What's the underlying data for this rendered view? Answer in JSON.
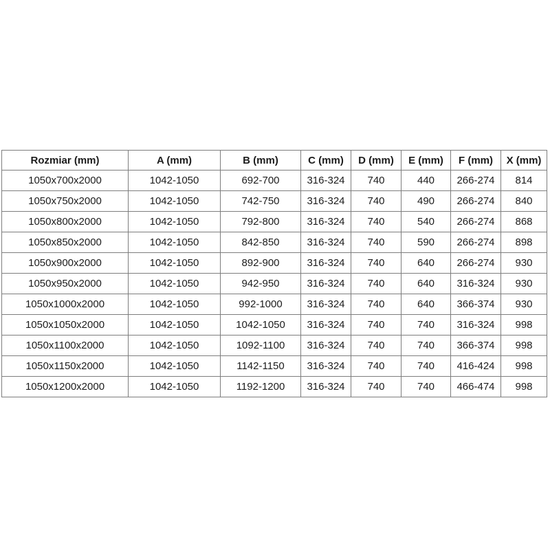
{
  "table": {
    "columns": [
      "Rozmiar (mm)",
      "A (mm)",
      "B (mm)",
      "C (mm)",
      "D (mm)",
      "E (mm)",
      "F (mm)",
      "X (mm)"
    ],
    "rows": [
      [
        "1050x700x2000",
        "1042-1050",
        "692-700",
        "316-324",
        "740",
        "440",
        "266-274",
        "814"
      ],
      [
        "1050x750x2000",
        "1042-1050",
        "742-750",
        "316-324",
        "740",
        "490",
        "266-274",
        "840"
      ],
      [
        "1050x800x2000",
        "1042-1050",
        "792-800",
        "316-324",
        "740",
        "540",
        "266-274",
        "868"
      ],
      [
        "1050x850x2000",
        "1042-1050",
        "842-850",
        "316-324",
        "740",
        "590",
        "266-274",
        "898"
      ],
      [
        "1050x900x2000",
        "1042-1050",
        "892-900",
        "316-324",
        "740",
        "640",
        "266-274",
        "930"
      ],
      [
        "1050x950x2000",
        "1042-1050",
        "942-950",
        "316-324",
        "740",
        "640",
        "316-324",
        "930"
      ],
      [
        "1050x1000x2000",
        "1042-1050",
        "992-1000",
        "316-324",
        "740",
        "640",
        "366-374",
        "930"
      ],
      [
        "1050x1050x2000",
        "1042-1050",
        "1042-1050",
        "316-324",
        "740",
        "740",
        "316-324",
        "998"
      ],
      [
        "1050x1100x2000",
        "1042-1050",
        "1092-1100",
        "316-324",
        "740",
        "740",
        "366-374",
        "998"
      ],
      [
        "1050x1150x2000",
        "1042-1050",
        "1142-1150",
        "316-324",
        "740",
        "740",
        "416-424",
        "998"
      ],
      [
        "1050x1200x2000",
        "1042-1050",
        "1192-1200",
        "316-324",
        "740",
        "740",
        "466-474",
        "998"
      ]
    ]
  },
  "colors": {
    "border": "#7d7d7d",
    "text": "#1c1c1c",
    "background": "#ffffff"
  }
}
